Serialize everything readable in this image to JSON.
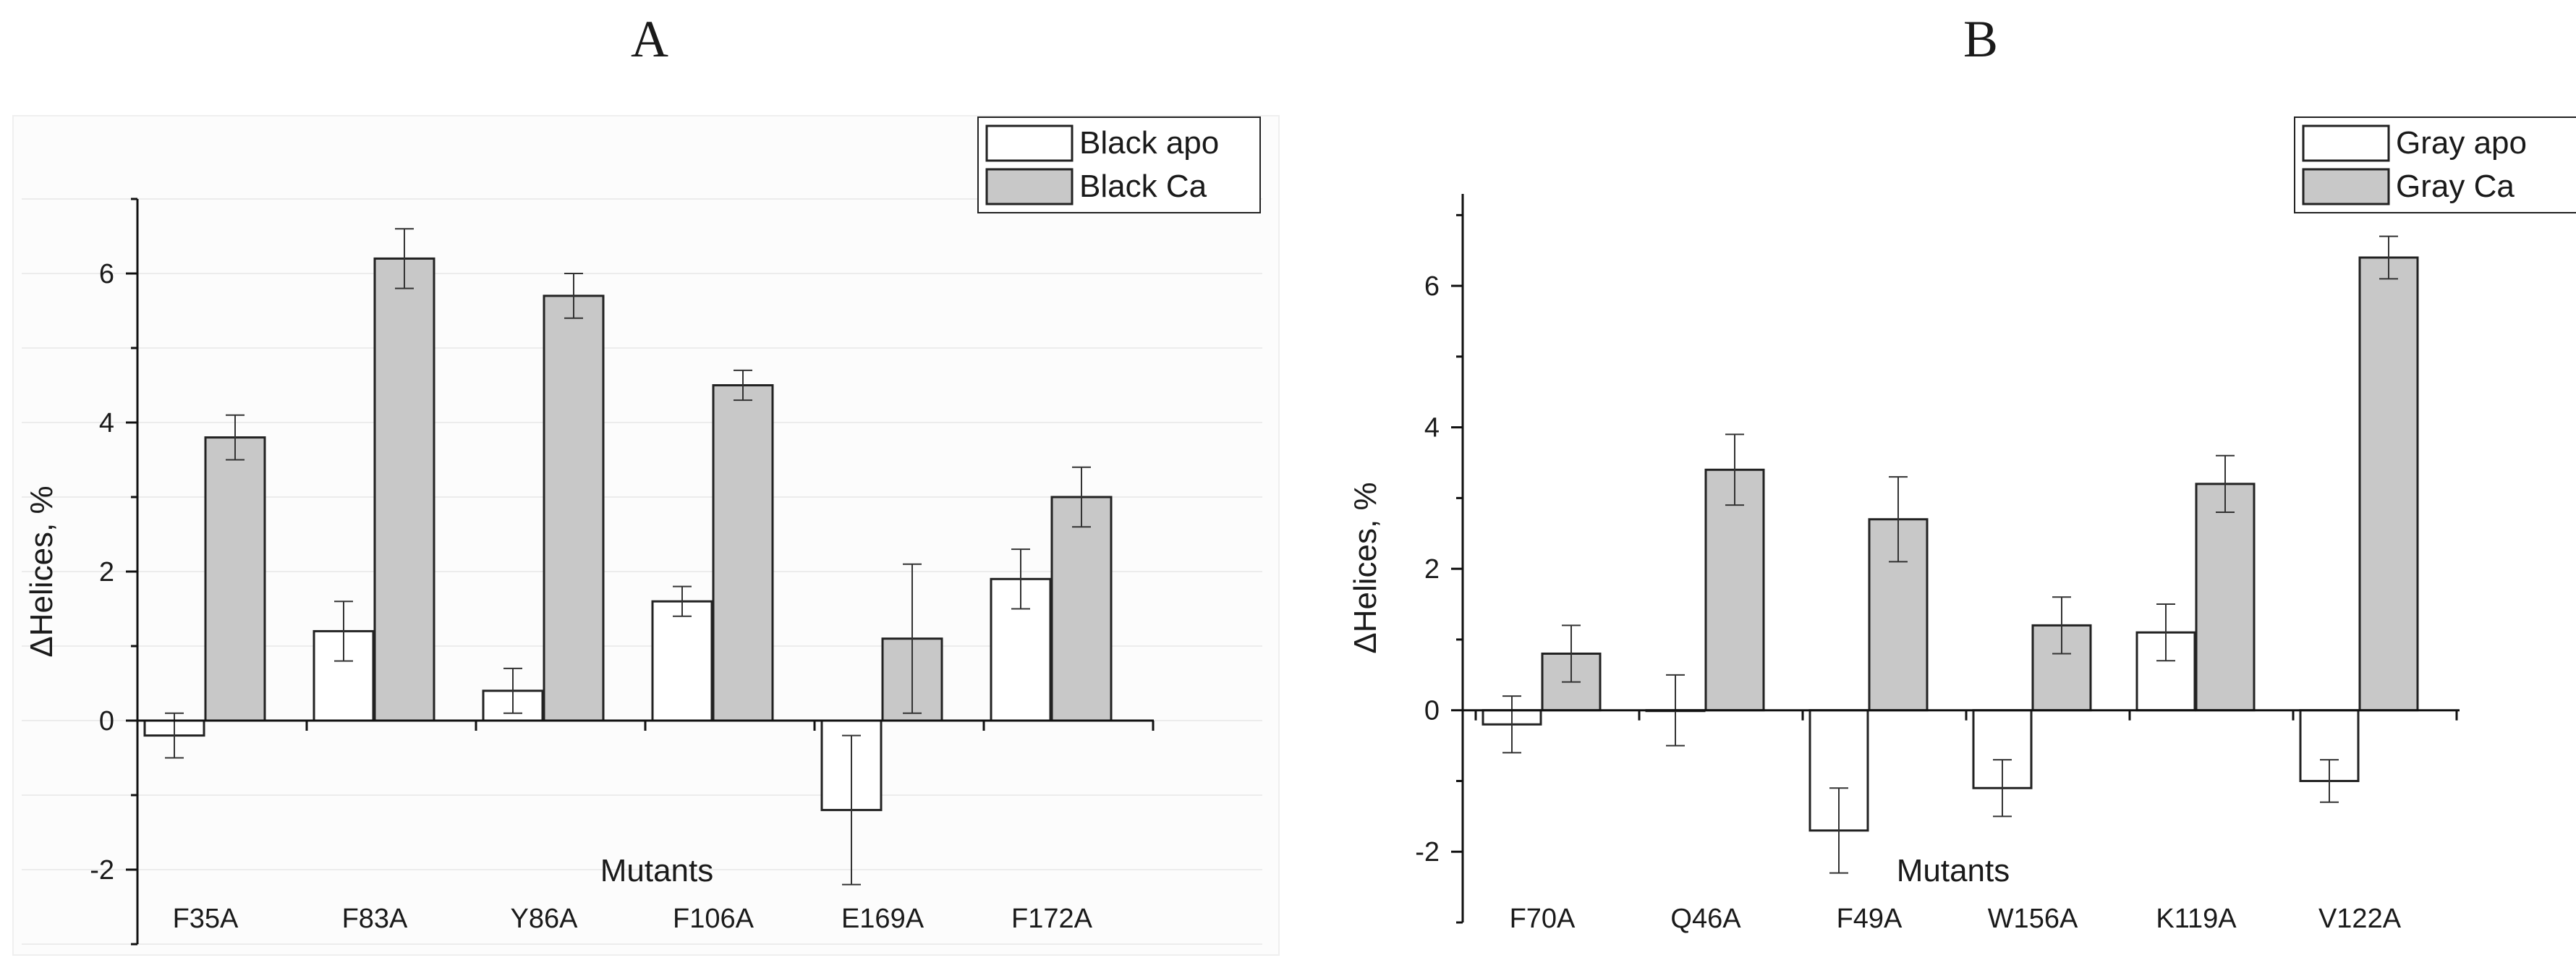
{
  "chart_data": [
    {
      "type": "bar",
      "panel": "A",
      "title": "",
      "xlabel": "Mutants",
      "ylabel": "ΔHelices, %",
      "ylim": [
        -3,
        7
      ],
      "yticks": [
        -2,
        0,
        2,
        4,
        6
      ],
      "categories": [
        "F35A",
        "F83A",
        "Y86A",
        "F106A",
        "E169A",
        "F172A"
      ],
      "series": [
        {
          "name": "Black apo",
          "color": "#ffffff",
          "values": [
            -0.2,
            1.2,
            0.4,
            1.6,
            -1.2,
            1.9
          ],
          "errors": [
            0.3,
            0.4,
            0.3,
            0.2,
            1.0,
            0.4
          ]
        },
        {
          "name": "Black Ca",
          "color": "#c8c8c8",
          "values": [
            3.8,
            6.2,
            5.7,
            4.5,
            1.1,
            3.0
          ],
          "errors": [
            0.3,
            0.4,
            0.3,
            0.2,
            1.0,
            0.4
          ]
        }
      ],
      "legend_position": "top-right",
      "grid": true
    },
    {
      "type": "bar",
      "panel": "B",
      "title": "",
      "xlabel": "Mutants",
      "ylabel": "ΔHelices, %",
      "ylim": [
        -3,
        7.5
      ],
      "yticks": [
        -2,
        0,
        2,
        4,
        6
      ],
      "categories": [
        "F70A",
        "Q46A",
        "F49A",
        "W156A",
        "K119A",
        "V122A"
      ],
      "series": [
        {
          "name": "Gray apo",
          "color": "#ffffff",
          "values": [
            -0.2,
            0.0,
            -1.7,
            -1.1,
            1.1,
            -1.0
          ],
          "errors": [
            0.4,
            0.5,
            0.6,
            0.4,
            0.4,
            0.3
          ]
        },
        {
          "name": "Gray Ca",
          "color": "#c8c8c8",
          "values": [
            0.8,
            3.4,
            2.7,
            1.2,
            3.2,
            6.4
          ],
          "errors": [
            0.4,
            0.5,
            0.6,
            0.4,
            0.4,
            0.3
          ]
        }
      ],
      "legend_position": "top-right",
      "grid": false
    }
  ]
}
